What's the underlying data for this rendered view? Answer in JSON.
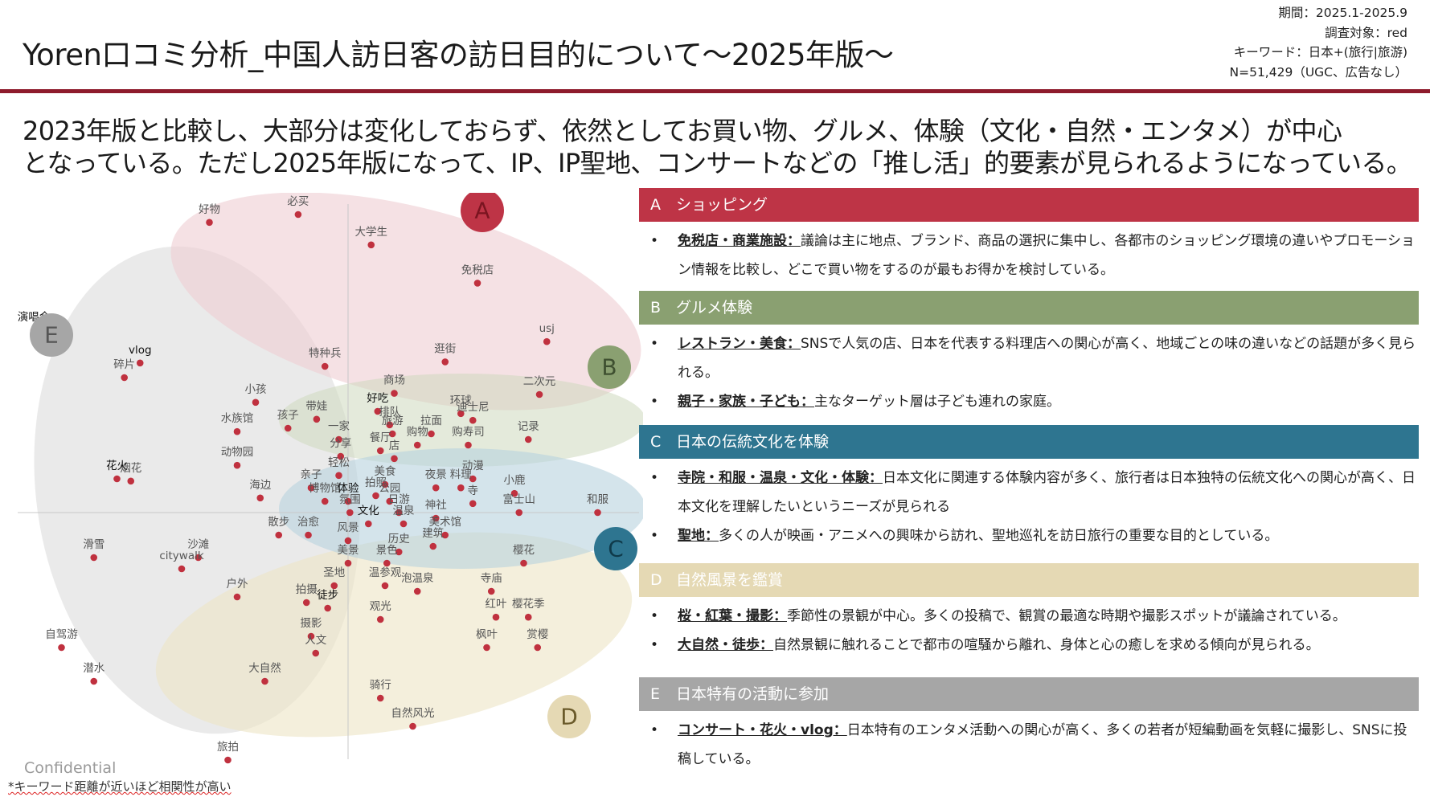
{
  "header": {
    "title": "Yoren口コミ分析_中国人訪日客の訪日目的について〜2025年版〜",
    "meta": [
      "期間：2025.1-2025.9",
      "調査対象：red",
      "キーワード：日本+(旅行|旅游)",
      "N=51,429（UGC、広告なし）"
    ]
  },
  "summary": [
    "2023年版と比較し、大部分は変化しておらず、依然としてお買い物、グルメ、体験（文化・自然・エンタメ）が中心",
    "となっている。ただし2025年版になって、IP、IP聖地、コンサートなどの「推し活」的要素が見られるようになっている。"
  ],
  "colors": {
    "accent": "#8e1b2c",
    "A": "#be3446",
    "B": "#8aa071",
    "C": "#2e7590",
    "D": "#e5d9b4",
    "E": "#a6a6a6",
    "point": "#c0313f"
  },
  "chart_data": {
    "type": "scatter",
    "clusters": [
      {
        "id": "A",
        "label": "A"
      },
      {
        "id": "B",
        "label": "B"
      },
      {
        "id": "C",
        "label": "C"
      },
      {
        "id": "D",
        "label": "D"
      },
      {
        "id": "E",
        "label": "E"
      }
    ],
    "points": [
      {
        "name": "好物",
        "x": -1.5,
        "y": 2.58
      },
      {
        "name": "必买",
        "x": -0.54,
        "y": 2.65
      },
      {
        "name": "大学生",
        "x": 0.25,
        "y": 2.38
      },
      {
        "name": "免税店",
        "x": 1.4,
        "y": 2.04
      },
      {
        "name": "演唱会",
        "x": -3.4,
        "y": 1.62
      },
      {
        "name": "vlog",
        "x": -2.25,
        "y": 1.33
      },
      {
        "name": "碎片",
        "x": -2.42,
        "y": 1.2
      },
      {
        "name": "usj",
        "x": 2.15,
        "y": 1.52
      },
      {
        "name": "特种兵",
        "x": -0.25,
        "y": 1.3
      },
      {
        "name": "逛街",
        "x": 1.05,
        "y": 1.34
      },
      {
        "name": "商场",
        "x": 0.5,
        "y": 1.06
      },
      {
        "name": "二次元",
        "x": 2.07,
        "y": 1.05
      },
      {
        "name": "小孩",
        "x": -1.0,
        "y": 0.98
      },
      {
        "name": "孩子",
        "x": -0.65,
        "y": 0.75
      },
      {
        "name": "带娃",
        "x": -0.34,
        "y": 0.83
      },
      {
        "name": "好吃",
        "x": 0.32,
        "y": 0.9
      },
      {
        "name": "排队",
        "x": 0.45,
        "y": 0.78
      },
      {
        "name": "环球",
        "x": 1.22,
        "y": 0.88
      },
      {
        "name": "迪士尼",
        "x": 1.35,
        "y": 0.82
      },
      {
        "name": "水族馆",
        "x": -1.2,
        "y": 0.72
      },
      {
        "name": "一家",
        "x": -0.1,
        "y": 0.65
      },
      {
        "name": "旅游",
        "x": 0.48,
        "y": 0.7
      },
      {
        "name": "拉面",
        "x": 0.9,
        "y": 0.7
      },
      {
        "name": "购物",
        "x": 0.75,
        "y": 0.6
      },
      {
        "name": "购寿司",
        "x": 1.3,
        "y": 0.6
      },
      {
        "name": "记录",
        "x": 1.95,
        "y": 0.65
      },
      {
        "name": "分享",
        "x": -0.08,
        "y": 0.5
      },
      {
        "name": "餐厅",
        "x": 0.35,
        "y": 0.55
      },
      {
        "name": "店",
        "x": 0.5,
        "y": 0.48
      },
      {
        "name": "动物园",
        "x": -1.2,
        "y": 0.42
      },
      {
        "name": "烟花",
        "x": -2.35,
        "y": 0.28
      },
      {
        "name": "花火",
        "x": -2.5,
        "y": 0.3
      },
      {
        "name": "轻松",
        "x": -0.1,
        "y": 0.33
      },
      {
        "name": "动漫",
        "x": 1.35,
        "y": 0.3
      },
      {
        "name": "亲子",
        "x": -0.4,
        "y": 0.22
      },
      {
        "name": "美食",
        "x": 0.4,
        "y": 0.25
      },
      {
        "name": "夜景",
        "x": 0.95,
        "y": 0.22
      },
      {
        "name": "料理",
        "x": 1.22,
        "y": 0.22
      },
      {
        "name": "小鹿",
        "x": 1.8,
        "y": 0.17
      },
      {
        "name": "海边",
        "x": -0.95,
        "y": 0.13
      },
      {
        "name": "博物馆",
        "x": -0.25,
        "y": 0.1
      },
      {
        "name": "体验",
        "x": 0.0,
        "y": 0.1
      },
      {
        "name": "拍照",
        "x": 0.3,
        "y": 0.15
      },
      {
        "name": "公园",
        "x": 0.45,
        "y": 0.1
      },
      {
        "name": "和服",
        "x": 2.7,
        "y": 0.0
      },
      {
        "name": "寺",
        "x": 1.35,
        "y": 0.08
      },
      {
        "name": "富士山",
        "x": 1.85,
        "y": 0.0
      },
      {
        "name": "氛围",
        "x": 0.02,
        "y": 0.0
      },
      {
        "name": "日游",
        "x": 0.55,
        "y": 0.0
      },
      {
        "name": "神社",
        "x": 0.95,
        "y": -0.05
      },
      {
        "name": "文化",
        "x": 0.22,
        "y": -0.1
      },
      {
        "name": "温泉",
        "x": 0.6,
        "y": -0.1
      },
      {
        "name": "治愈",
        "x": -0.43,
        "y": -0.2
      },
      {
        "name": "风景",
        "x": 0.0,
        "y": -0.25
      },
      {
        "name": "散步",
        "x": -0.75,
        "y": -0.2
      },
      {
        "name": "美术馆",
        "x": 1.05,
        "y": -0.2
      },
      {
        "name": "建筑",
        "x": 0.92,
        "y": -0.3
      },
      {
        "name": "历史",
        "x": 0.55,
        "y": -0.35
      },
      {
        "name": "滑雪",
        "x": -2.75,
        "y": -0.4
      },
      {
        "name": "沙滩",
        "x": -1.62,
        "y": -0.4
      },
      {
        "name": "citywalk",
        "x": -1.8,
        "y": -0.5
      },
      {
        "name": "美景",
        "x": 0.0,
        "y": -0.45
      },
      {
        "name": "景色",
        "x": 0.42,
        "y": -0.45
      },
      {
        "name": "樱花",
        "x": 1.9,
        "y": -0.45
      },
      {
        "name": "户外",
        "x": -1.2,
        "y": -0.75
      },
      {
        "name": "圣地",
        "x": -0.15,
        "y": -0.65
      },
      {
        "name": "温参观",
        "x": 0.4,
        "y": -0.65
      },
      {
        "name": "泡温泉",
        "x": 0.75,
        "y": -0.7
      },
      {
        "name": "寺庙",
        "x": 1.55,
        "y": -0.7
      },
      {
        "name": "拍摄",
        "x": -0.45,
        "y": -0.8
      },
      {
        "name": "徒步",
        "x": -0.22,
        "y": -0.85
      },
      {
        "name": "观光",
        "x": 0.35,
        "y": -0.95
      },
      {
        "name": "红叶",
        "x": 1.6,
        "y": -0.93
      },
      {
        "name": "樱花季",
        "x": 1.95,
        "y": -0.93
      },
      {
        "name": "自驾游",
        "x": -3.1,
        "y": -1.2
      },
      {
        "name": "摄影",
        "x": -0.4,
        "y": -1.1
      },
      {
        "name": "人文",
        "x": -0.35,
        "y": -1.25
      },
      {
        "name": "枫叶",
        "x": 1.5,
        "y": -1.2
      },
      {
        "name": "赏樱",
        "x": 2.05,
        "y": -1.2
      },
      {
        "name": "潜水",
        "x": -2.75,
        "y": -1.5
      },
      {
        "name": "大自然",
        "x": -0.9,
        "y": -1.5
      },
      {
        "name": "骑行",
        "x": 0.35,
        "y": -1.65
      },
      {
        "name": "自然风光",
        "x": 0.7,
        "y": -1.9
      },
      {
        "name": "旅拍",
        "x": -1.3,
        "y": -2.2
      }
    ]
  },
  "categories": [
    {
      "letter": "A",
      "title": "ショッピング",
      "color": "#be3446",
      "items": [
        {
          "head": "免税店・商業施設：",
          "text": "議論は主に地点、ブランド、商品の選択に集中し、各都市のショッピング環境の違いやプロモーション情報を比較し、どこで買い物をするのが最もお得かを検討している。"
        }
      ]
    },
    {
      "letter": "B",
      "title": "グルメ体験",
      "color": "#8aa071",
      "items": [
        {
          "head": "レストラン・美食：",
          "text": "SNSで人気の店、日本を代表する料理店への関心が高く、地域ごとの味の違いなどの話題が多く見られる。"
        },
        {
          "head": "親子・家族・子ども：",
          "text": "主なターゲット層は子ども連れの家庭。"
        }
      ]
    },
    {
      "letter": "C",
      "title": "日本の伝統文化を体験",
      "color": "#2e7590",
      "items": [
        {
          "head": "寺院・和服・温泉・文化・体験：",
          "text": "日本文化に関連する体験内容が多く、旅行者は日本独特の伝統文化への関心が高く、日本文化を理解したいというニーズが見られる"
        },
        {
          "head": "聖地：",
          "text": "多くの人が映画・アニメへの興味から訪れ、聖地巡礼を訪日旅行の重要な目的としている。"
        }
      ]
    },
    {
      "letter": "D",
      "title": "自然風景を鑑賞",
      "color": "#e5d9b4",
      "items": [
        {
          "head": "桜・紅葉・撮影：",
          "text": "季節性の景観が中心。多くの投稿で、観賞の最適な時期や撮影スポットが議論されている。"
        },
        {
          "head": "大自然・徒歩：",
          "text": "自然景観に触れることで都市の喧騒から離れ、身体と心の癒しを求める傾向が見られる。"
        }
      ]
    },
    {
      "letter": "E",
      "title": "日本特有の活動に参加",
      "color": "#a6a6a6",
      "items": [
        {
          "head": "コンサート・花火・vlog：",
          "text": "日本特有のエンタメ活動への関心が高く、多くの若者が短編動画を気軽に撮影し、SNSに投稿している。"
        }
      ]
    }
  ],
  "footer": {
    "confidential": "Confidential",
    "note": "*キーワード距離が近いほど相関性が高い"
  }
}
